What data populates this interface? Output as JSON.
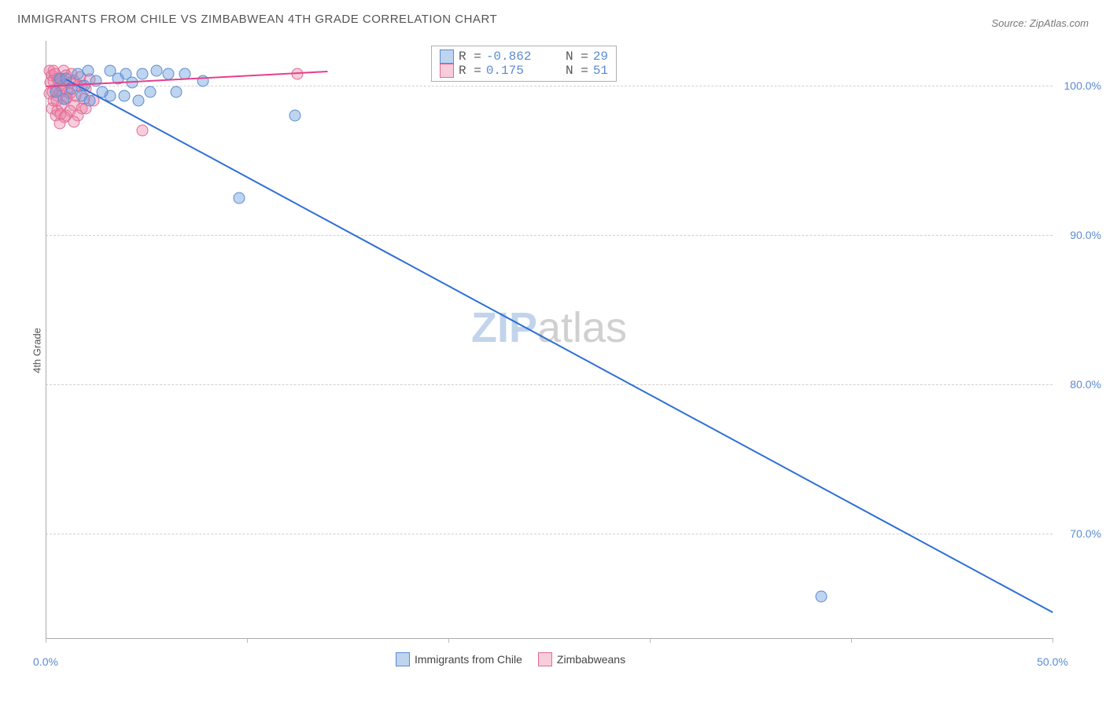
{
  "title": "IMMIGRANTS FROM CHILE VS ZIMBABWEAN 4TH GRADE CORRELATION CHART",
  "title_fontsize": 15,
  "title_color": "#555555",
  "source": "Source: ZipAtlas.com",
  "source_fontsize": 13,
  "source_color": "#777777",
  "ylabel": "4th Grade",
  "ylabel_fontsize": 13,
  "ylabel_color": "#555555",
  "background_color": "#ffffff",
  "grid_color": "#d0d0d0",
  "axis_color": "#aaaaaa",
  "plot": {
    "type": "scatter",
    "xlim": [
      0,
      50
    ],
    "ylim": [
      63,
      103
    ],
    "x_ticks": [
      0,
      10,
      20,
      30,
      40,
      50
    ],
    "x_tick_labels": [
      "0.0%",
      "",
      "",
      "",
      "",
      "50.0%"
    ],
    "y_ticks": [
      70,
      80,
      90,
      100
    ],
    "y_tick_labels": [
      "70.0%",
      "80.0%",
      "90.0%",
      "100.0%"
    ],
    "tick_label_color": "#5b8bd4",
    "tick_label_fontsize": 14
  },
  "series": [
    {
      "key": "chile",
      "label": "Immigrants from Chile",
      "marker_fill": "rgba(110,160,220,0.45)",
      "marker_stroke": "#5b8bd4",
      "marker_size": 15,
      "trend_color": "#2e6fd6",
      "trend": {
        "x1": 1.0,
        "y1": 100.5,
        "x2": 50.0,
        "y2": 64.8
      },
      "R": "-0.862",
      "N": "29",
      "points": [
        [
          0.7,
          100.5
        ],
        [
          1.0,
          100.5
        ],
        [
          1.8,
          99.3
        ],
        [
          3.2,
          101.0
        ],
        [
          4.0,
          100.8
        ],
        [
          4.8,
          100.8
        ],
        [
          5.5,
          101.0
        ],
        [
          6.1,
          100.8
        ],
        [
          6.9,
          100.8
        ],
        [
          7.8,
          100.3
        ],
        [
          3.2,
          99.3
        ],
        [
          3.9,
          99.3
        ],
        [
          2.2,
          99.0
        ],
        [
          4.6,
          99.0
        ],
        [
          2.8,
          99.6
        ],
        [
          12.4,
          98.0
        ],
        [
          9.6,
          92.5
        ],
        [
          38.5,
          65.8
        ],
        [
          1.3,
          99.8
        ],
        [
          2.5,
          100.3
        ],
        [
          3.6,
          100.5
        ],
        [
          5.2,
          99.6
        ],
        [
          6.5,
          99.6
        ],
        [
          1.6,
          100.8
        ],
        [
          2.1,
          101.0
        ],
        [
          0.5,
          99.6
        ],
        [
          4.3,
          100.2
        ],
        [
          1.9,
          100.0
        ],
        [
          0.9,
          99.1
        ]
      ]
    },
    {
      "key": "zimbabwe",
      "label": "Zimbabweans",
      "marker_fill": "rgba(235,130,165,0.40)",
      "marker_stroke": "#e06b94",
      "marker_size": 15,
      "trend_color": "#e83e8c",
      "trend": {
        "x1": 0.0,
        "y1": 100.0,
        "x2": 14.0,
        "y2": 101.0
      },
      "R": "0.175",
      "N": "51",
      "points": [
        [
          0.2,
          101.0
        ],
        [
          0.3,
          100.7
        ],
        [
          0.4,
          100.3
        ],
        [
          0.5,
          99.8
        ],
        [
          0.6,
          99.3
        ],
        [
          0.7,
          100.0
        ],
        [
          0.8,
          100.5
        ],
        [
          0.9,
          101.0
        ],
        [
          1.0,
          99.1
        ],
        [
          1.1,
          99.6
        ],
        [
          1.2,
          100.2
        ],
        [
          1.3,
          100.8
        ],
        [
          1.4,
          98.7
        ],
        [
          1.5,
          99.3
        ],
        [
          1.6,
          100.0
        ],
        [
          1.7,
          100.6
        ],
        [
          1.8,
          98.5
        ],
        [
          1.9,
          99.1
        ],
        [
          2.0,
          99.8
        ],
        [
          0.3,
          98.5
        ],
        [
          0.5,
          98.0
        ],
        [
          0.7,
          97.5
        ],
        [
          4.8,
          97.0
        ],
        [
          12.5,
          100.8
        ],
        [
          2.2,
          100.4
        ],
        [
          2.4,
          99.0
        ],
        [
          0.4,
          101.0
        ],
        [
          0.6,
          100.5
        ],
        [
          0.8,
          98.7
        ],
        [
          1.0,
          100.7
        ],
        [
          1.2,
          98.3
        ],
        [
          1.4,
          100.3
        ],
        [
          1.6,
          98.0
        ],
        [
          1.8,
          100.0
        ],
        [
          2.0,
          98.5
        ],
        [
          0.2,
          99.5
        ],
        [
          0.4,
          99.0
        ],
        [
          0.6,
          98.3
        ],
        [
          0.8,
          99.7
        ],
        [
          1.0,
          98.0
        ],
        [
          1.2,
          99.5
        ],
        [
          1.4,
          97.6
        ],
        [
          0.25,
          100.2
        ],
        [
          0.35,
          99.6
        ],
        [
          0.45,
          100.8
        ],
        [
          0.55,
          99.0
        ],
        [
          0.65,
          100.3
        ],
        [
          0.75,
          98.1
        ],
        [
          0.85,
          100.0
        ],
        [
          0.95,
          97.9
        ],
        [
          1.05,
          99.2
        ]
      ]
    }
  ],
  "stats_box": {
    "fontsize": 16,
    "label_color": "#555555",
    "value_color": "#5b8bd4",
    "swatch_size": 18
  },
  "legend": {
    "fontsize": 14,
    "text_color": "#444444",
    "swatch_size": 18
  },
  "watermark": {
    "text1": "ZIP",
    "text2": "atlas",
    "fontsize": 54,
    "color1": "rgba(120,160,210,0.45)",
    "color2": "rgba(150,150,150,0.45)"
  }
}
